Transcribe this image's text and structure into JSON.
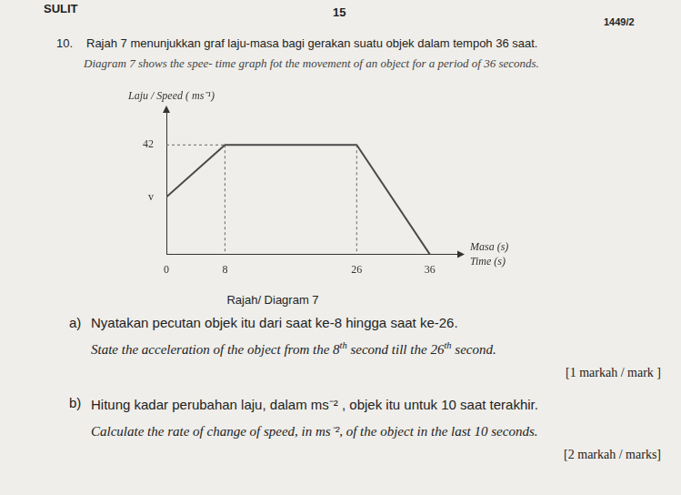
{
  "header": {
    "left": "SULIT",
    "page": "15",
    "code": "1449/2"
  },
  "question": {
    "number": "10.",
    "text_ms": "Rajah 7  menunjukkan graf laju-masa bagi gerakan suatu objek dalam tempoh 36 saat.",
    "text_en": "Diagram 7  shows the spee- time graph fot the movement of an object for a period of 36 seconds."
  },
  "chart_data": {
    "type": "line",
    "y_label": "Laju / Speed ( ms⁻¹)",
    "x_label": [
      "Masa (s)",
      "Time (s)"
    ],
    "x": [
      0,
      8,
      26,
      36
    ],
    "values": [
      22,
      42,
      42,
      0
    ],
    "xlim": [
      0,
      40
    ],
    "ylim": [
      0,
      55
    ],
    "xticks": [
      0,
      8,
      26,
      36
    ],
    "yticks": [
      {
        "value": 22,
        "label": "v"
      },
      42
    ],
    "grid": false,
    "color": "#4a4a4a"
  },
  "caption": "Rajah/ Diagram 7",
  "parts": [
    {
      "label": "a)",
      "text_ms": "Nyatakan pecutan objek itu dari saat ke-8 hingga saat ke-26.",
      "text_en": "State the acceleration of the object from the 8th second till the 26th second.",
      "marks": "[1 markah / mark ]"
    },
    {
      "label": "b)",
      "text_ms": "Hitung kadar perubahan laju, dalam ms⁻² , objek itu untuk 10 saat terakhir.",
      "text_en": "Calculate the rate of change of speed, in ms⁻², of the object in the last 10 seconds.",
      "marks": "[2 markah / marks]"
    }
  ]
}
